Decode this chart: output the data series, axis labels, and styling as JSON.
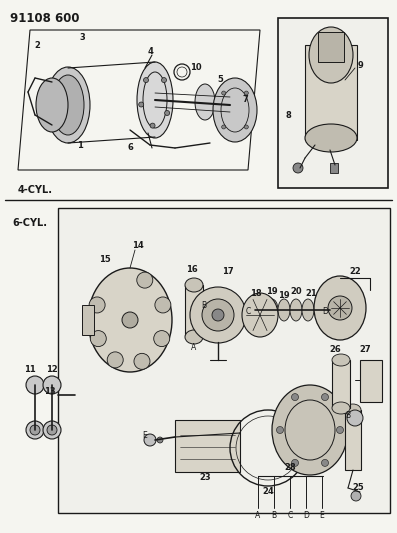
{
  "title": "91108 600",
  "bg_color": "#f5f5f0",
  "line_color": "#1a1a1a",
  "label_4cyl": "4-CYL.",
  "label_6cyl": "6-CYL.",
  "fig_w": 3.97,
  "fig_h": 5.33,
  "dpi": 100
}
